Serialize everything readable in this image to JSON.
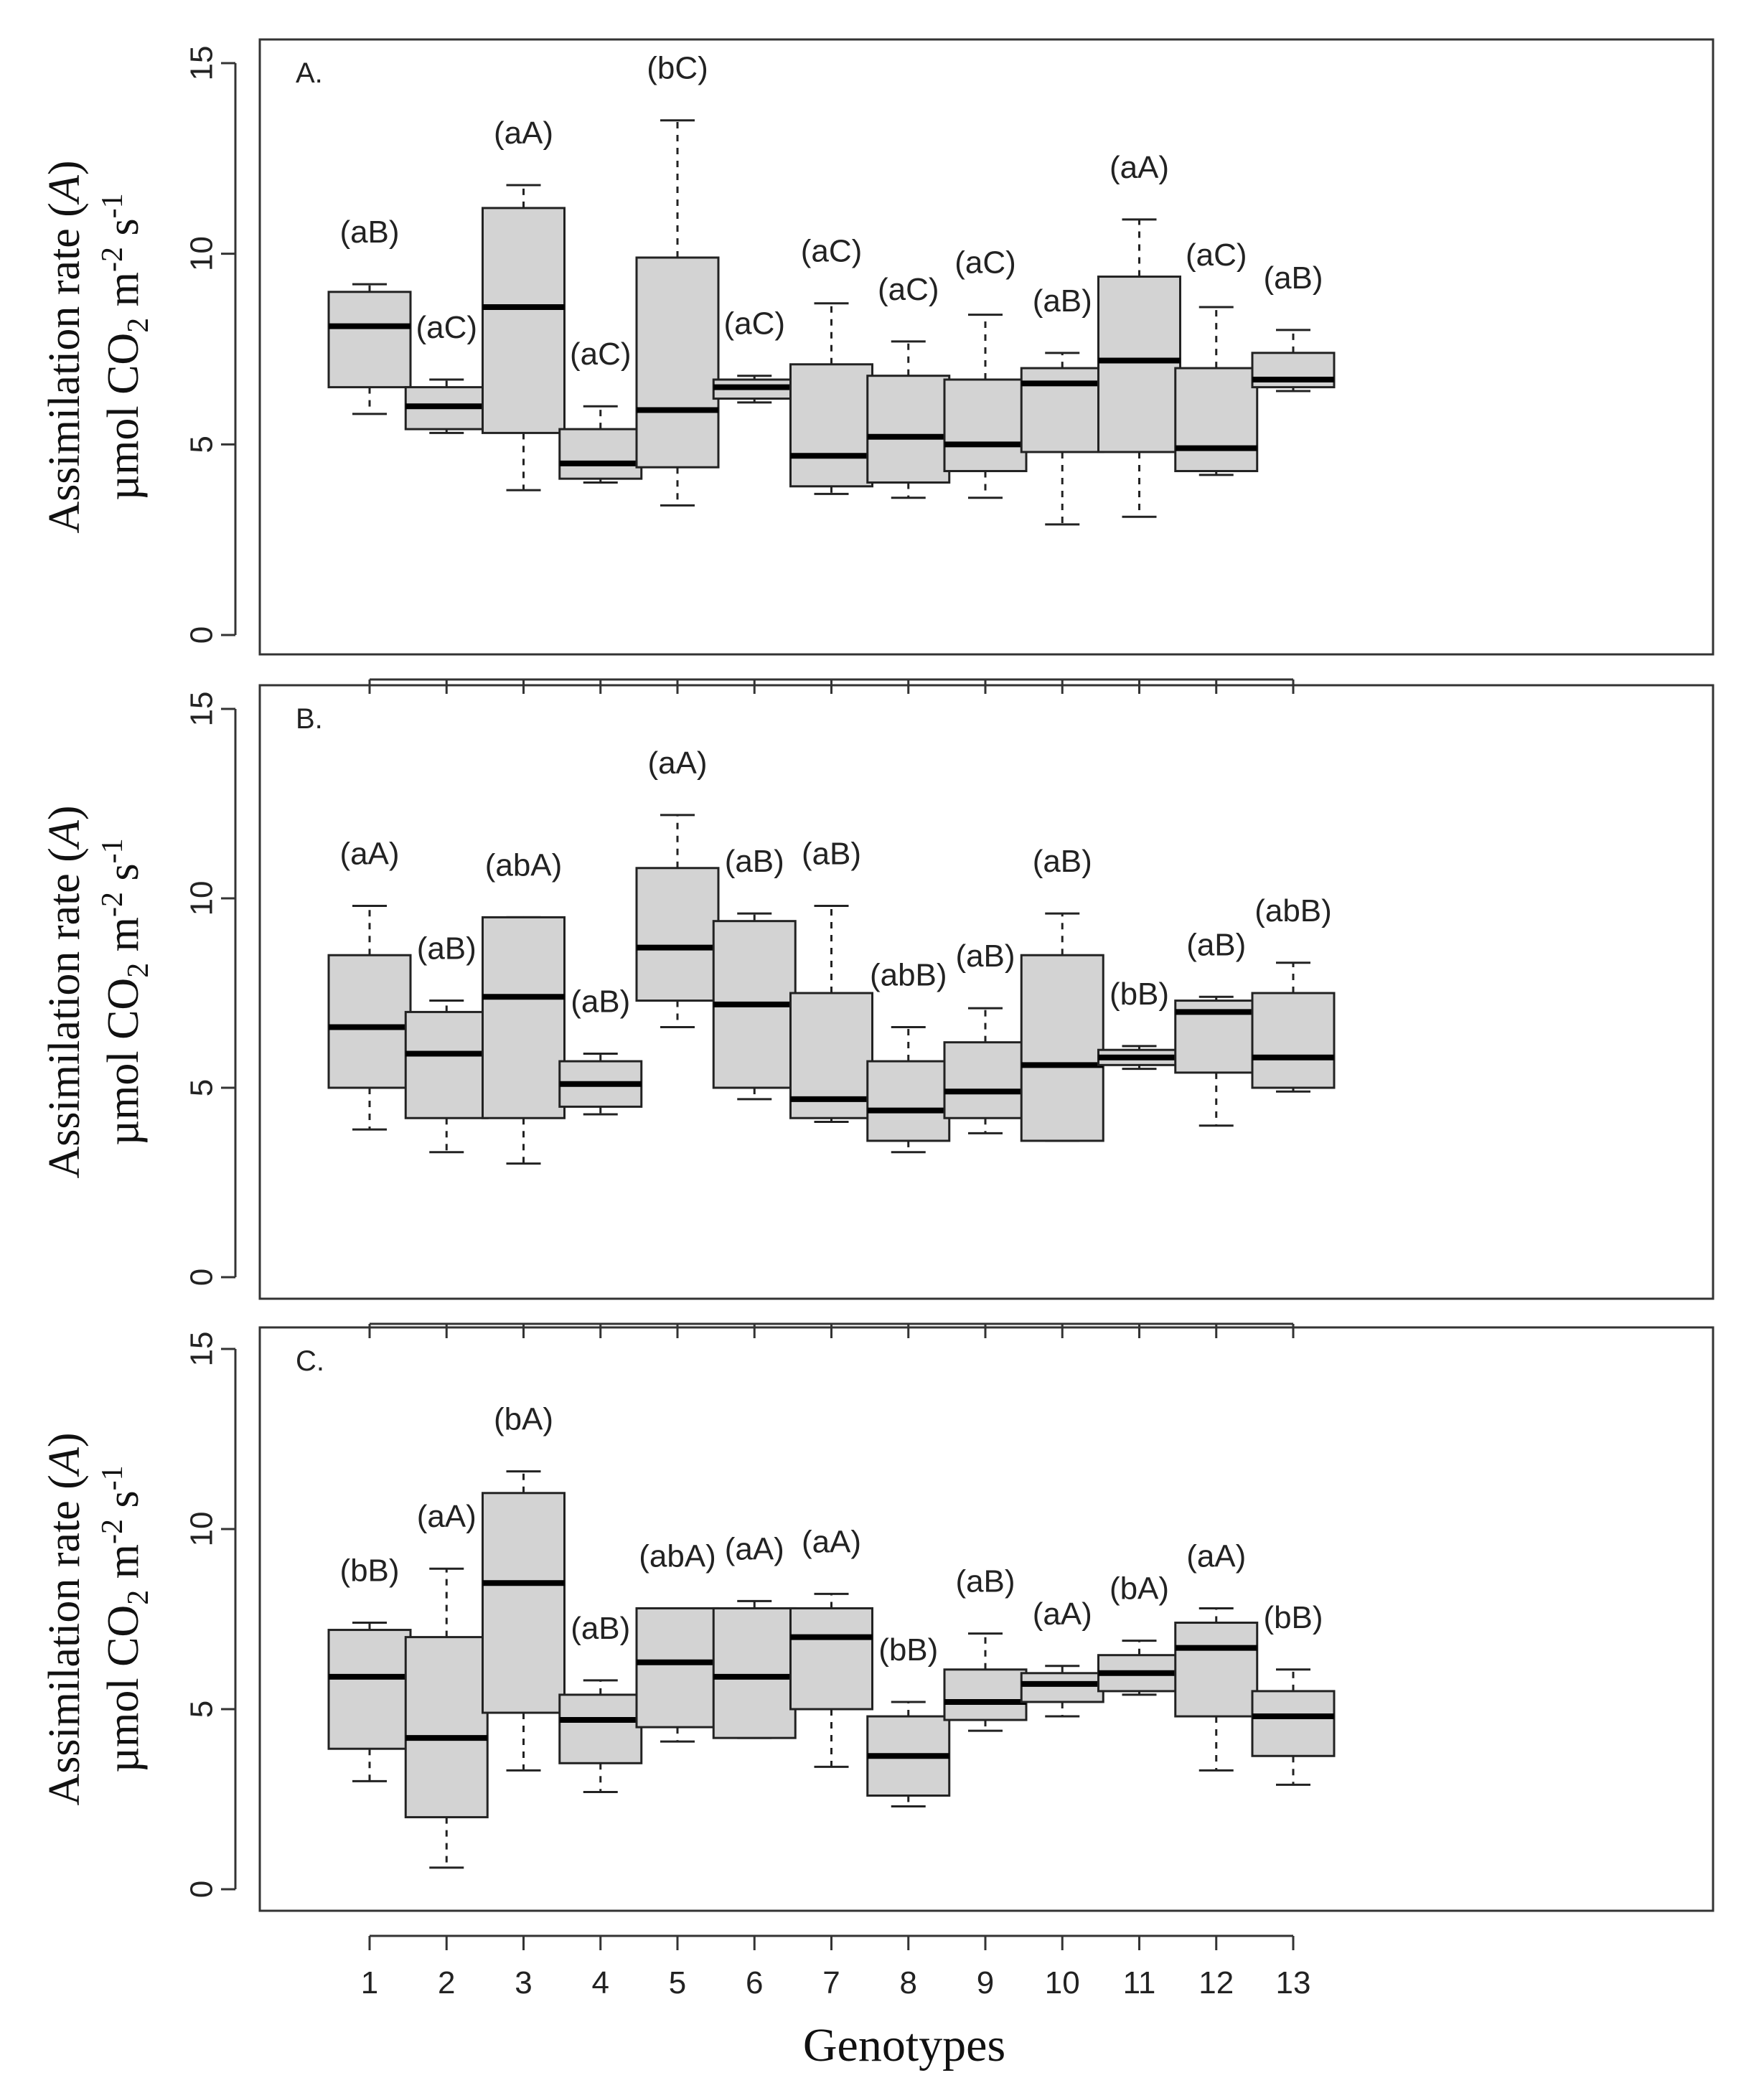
{
  "figure": {
    "xlabel": "Genotypes"
  },
  "chart_data": [
    {
      "type": "boxplot",
      "panel": "A.",
      "xlabel": "Genotypes",
      "ylabel_line1": "Assimilation rate (",
      "ylabel_italic": "A",
      "ylabel_line1_end": ")",
      "ylabel_line2_pre": "µmol CO",
      "ylabel_sub": "2",
      "ylabel_line2_mid": " m",
      "ylabel_sup1": "-2",
      "ylabel_line2_s": " s",
      "ylabel_sup2": "-1",
      "ylim": [
        0,
        15
      ],
      "yticks": [
        "0",
        "5",
        "10",
        "15"
      ],
      "categories": [
        "1",
        "2",
        "3",
        "4",
        "5",
        "6",
        "7",
        "8",
        "9",
        "10",
        "11",
        "12",
        "13"
      ],
      "boxes": [
        {
          "whislo": 5.8,
          "q1": 6.5,
          "med": 8.1,
          "q3": 9.0,
          "whishi": 9.2,
          "label": "(aB)"
        },
        {
          "whislo": 5.3,
          "q1": 5.4,
          "med": 6.0,
          "q3": 6.5,
          "whishi": 6.7,
          "label": "(aC)"
        },
        {
          "whislo": 3.8,
          "q1": 5.3,
          "med": 8.6,
          "q3": 11.2,
          "whishi": 11.8,
          "label": "(aA)"
        },
        {
          "whislo": 4.0,
          "q1": 4.1,
          "med": 4.5,
          "q3": 5.4,
          "whishi": 6.0,
          "label": "(aC)"
        },
        {
          "whislo": 3.4,
          "q1": 4.4,
          "med": 5.9,
          "q3": 9.9,
          "whishi": 13.5,
          "label": "(bC)"
        },
        {
          "whislo": 6.1,
          "q1": 6.2,
          "med": 6.5,
          "q3": 6.7,
          "whishi": 6.8,
          "label": "(aC)"
        },
        {
          "whislo": 3.7,
          "q1": 3.9,
          "med": 4.7,
          "q3": 7.1,
          "whishi": 8.7,
          "label": "(aC)"
        },
        {
          "whislo": 3.6,
          "q1": 4.0,
          "med": 5.2,
          "q3": 6.8,
          "whishi": 7.7,
          "label": "(aC)"
        },
        {
          "whislo": 3.6,
          "q1": 4.3,
          "med": 5.0,
          "q3": 6.7,
          "whishi": 8.4,
          "label": "(aC)"
        },
        {
          "whislo": 2.9,
          "q1": 4.8,
          "med": 6.6,
          "q3": 7.0,
          "whishi": 7.4,
          "label": "(aB)"
        },
        {
          "whislo": 3.1,
          "q1": 4.8,
          "med": 7.2,
          "q3": 9.4,
          "whishi": 10.9,
          "label": "(aA)"
        },
        {
          "whislo": 4.2,
          "q1": 4.3,
          "med": 4.9,
          "q3": 7.0,
          "whishi": 8.6,
          "label": "(aC)"
        },
        {
          "whislo": 6.4,
          "q1": 6.5,
          "med": 6.7,
          "q3": 7.4,
          "whishi": 8.0,
          "label": "(aB)"
        }
      ]
    },
    {
      "type": "boxplot",
      "panel": "B.",
      "xlabel": "Genotypes",
      "ylabel_line1": "Assimilation rate (",
      "ylabel_italic": "A",
      "ylabel_line1_end": ")",
      "ylabel_line2_pre": "µmol CO",
      "ylabel_sub": "2",
      "ylabel_line2_mid": " m",
      "ylabel_sup1": "-2",
      "ylabel_line2_s": " s",
      "ylabel_sup2": "-1",
      "ylim": [
        0,
        15
      ],
      "yticks": [
        "0",
        "5",
        "10",
        "15"
      ],
      "categories": [
        "1",
        "2",
        "3",
        "4",
        "5",
        "6",
        "7",
        "8",
        "9",
        "10",
        "11",
        "12",
        "13"
      ],
      "boxes": [
        {
          "whislo": 3.9,
          "q1": 5.0,
          "med": 6.6,
          "q3": 8.5,
          "whishi": 9.8,
          "label": "(aA)"
        },
        {
          "whislo": 3.3,
          "q1": 4.2,
          "med": 5.9,
          "q3": 7.0,
          "whishi": 7.3,
          "label": "(aB)"
        },
        {
          "whislo": 3.0,
          "q1": 4.2,
          "med": 7.4,
          "q3": 9.5,
          "whishi": 9.5,
          "label": "(abA)"
        },
        {
          "whislo": 4.3,
          "q1": 4.5,
          "med": 5.1,
          "q3": 5.7,
          "whishi": 5.9,
          "label": "(aB)"
        },
        {
          "whislo": 6.6,
          "q1": 7.3,
          "med": 8.7,
          "q3": 10.8,
          "whishi": 12.2,
          "label": "(aA)"
        },
        {
          "whislo": 4.7,
          "q1": 5.0,
          "med": 7.2,
          "q3": 9.4,
          "whishi": 9.6,
          "label": "(aB)"
        },
        {
          "whislo": 4.1,
          "q1": 4.2,
          "med": 4.7,
          "q3": 7.5,
          "whishi": 9.8,
          "label": "(aB)"
        },
        {
          "whislo": 3.3,
          "q1": 3.6,
          "med": 4.4,
          "q3": 5.7,
          "whishi": 6.6,
          "label": "(abB)"
        },
        {
          "whislo": 3.8,
          "q1": 4.2,
          "med": 4.9,
          "q3": 6.2,
          "whishi": 7.1,
          "label": "(aB)"
        },
        {
          "whislo": 3.6,
          "q1": 3.6,
          "med": 5.6,
          "q3": 8.5,
          "whishi": 9.6,
          "label": "(aB)"
        },
        {
          "whislo": 5.5,
          "q1": 5.6,
          "med": 5.8,
          "q3": 6.0,
          "whishi": 6.1,
          "label": "(bB)"
        },
        {
          "whislo": 4.0,
          "q1": 5.4,
          "med": 7.0,
          "q3": 7.3,
          "whishi": 7.4,
          "label": "(aB)"
        },
        {
          "whislo": 4.9,
          "q1": 5.0,
          "med": 5.8,
          "q3": 7.5,
          "whishi": 8.3,
          "label": "(abB)"
        }
      ]
    },
    {
      "type": "boxplot",
      "panel": "C.",
      "xlabel": "Genotypes",
      "ylabel_line1": "Assimilation rate (",
      "ylabel_italic": "A",
      "ylabel_line1_end": ")",
      "ylabel_line2_pre": "µmol CO",
      "ylabel_sub": "2",
      "ylabel_line2_mid": " m",
      "ylabel_sup1": "-2",
      "ylabel_line2_s": " s",
      "ylabel_sup2": "-1",
      "ylim": [
        0,
        15
      ],
      "yticks": [
        "0",
        "5",
        "10",
        "15"
      ],
      "categories": [
        "1",
        "2",
        "3",
        "4",
        "5",
        "6",
        "7",
        "8",
        "9",
        "10",
        "11",
        "12",
        "13"
      ],
      "boxes": [
        {
          "whislo": 3.0,
          "q1": 3.9,
          "med": 5.9,
          "q3": 7.2,
          "whishi": 7.4,
          "label": "(bB)"
        },
        {
          "whislo": 0.6,
          "q1": 2.0,
          "med": 4.2,
          "q3": 7.0,
          "whishi": 8.9,
          "label": "(aA)"
        },
        {
          "whislo": 3.3,
          "q1": 4.9,
          "med": 8.5,
          "q3": 11.0,
          "whishi": 11.6,
          "label": "(bA)"
        },
        {
          "whislo": 2.7,
          "q1": 3.5,
          "med": 4.7,
          "q3": 5.4,
          "whishi": 5.8,
          "label": "(aB)"
        },
        {
          "whislo": 4.1,
          "q1": 4.5,
          "med": 6.3,
          "q3": 7.8,
          "whishi": 7.8,
          "label": "(abA)"
        },
        {
          "whislo": 4.2,
          "q1": 4.2,
          "med": 5.9,
          "q3": 7.8,
          "whishi": 8.0,
          "label": "(aA)"
        },
        {
          "whislo": 3.4,
          "q1": 5.0,
          "med": 7.0,
          "q3": 7.8,
          "whishi": 8.2,
          "label": "(aA)"
        },
        {
          "whislo": 2.3,
          "q1": 2.6,
          "med": 3.7,
          "q3": 4.8,
          "whishi": 5.2,
          "label": "(bB)"
        },
        {
          "whislo": 4.4,
          "q1": 4.7,
          "med": 5.2,
          "q3": 6.1,
          "whishi": 7.1,
          "label": "(aB)"
        },
        {
          "whislo": 4.8,
          "q1": 5.2,
          "med": 5.7,
          "q3": 6.0,
          "whishi": 6.2,
          "label": "(aA)"
        },
        {
          "whislo": 5.4,
          "q1": 5.5,
          "med": 6.0,
          "q3": 6.5,
          "whishi": 6.9,
          "label": "(bA)"
        },
        {
          "whislo": 3.3,
          "q1": 4.8,
          "med": 6.7,
          "q3": 7.4,
          "whishi": 7.8,
          "label": "(aA)"
        },
        {
          "whislo": 2.9,
          "q1": 3.7,
          "med": 4.8,
          "q3": 5.5,
          "whishi": 6.1,
          "label": "(bB)"
        }
      ]
    }
  ]
}
